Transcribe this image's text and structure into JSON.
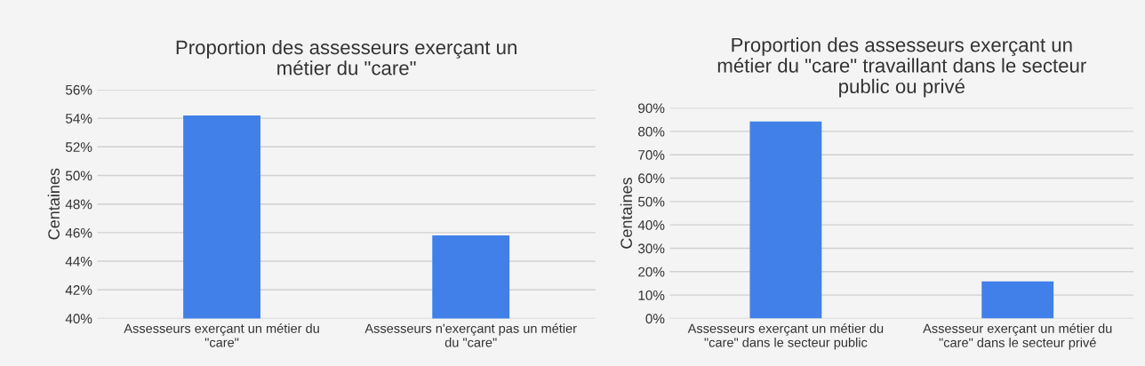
{
  "chart_data": [
    {
      "type": "bar",
      "title": "Proportion des assesseurs exerçant un\nmétier du \"care\"",
      "ylabel": "Centaines",
      "categories": [
        "Assesseurs exerçant un métier du\n\"care\"",
        "Assesseurs n'exerçant pas un métier\ndu \"care\""
      ],
      "values": [
        54.2,
        45.8
      ],
      "color": "#4180e8",
      "ylim": [
        40,
        56
      ],
      "yticks": [
        {
          "value": 40,
          "label": "40%"
        },
        {
          "value": 42,
          "label": "42%"
        },
        {
          "value": 44,
          "label": "44%"
        },
        {
          "value": 46,
          "label": "46%"
        },
        {
          "value": 48,
          "label": "48%"
        },
        {
          "value": 50,
          "label": "50%"
        },
        {
          "value": 52,
          "label": "52%"
        },
        {
          "value": 54,
          "label": "54%"
        },
        {
          "value": 56,
          "label": "56%"
        }
      ],
      "grid": "y"
    },
    {
      "type": "bar",
      "title": "Proportion des assesseurs exerçant un\nmétier du \"care\" travaillant dans le secteur\npublic ou privé",
      "ylabel": "Centaines",
      "categories": [
        "Assesseurs exerçant un métier du\n\"care\" dans le secteur public",
        "Assesseur exerçant un métier du\n\"care\" dans le secteur privé"
      ],
      "values": [
        84.2,
        15.8
      ],
      "color": "#4180e8",
      "ylim": [
        0,
        90
      ],
      "yticks": [
        {
          "value": 0,
          "label": "0%"
        },
        {
          "value": 10,
          "label": "10%"
        },
        {
          "value": 20,
          "label": "20%"
        },
        {
          "value": 30,
          "label": "30%"
        },
        {
          "value": 40,
          "label": "40%"
        },
        {
          "value": 50,
          "label": "50%"
        },
        {
          "value": 60,
          "label": "60%"
        },
        {
          "value": 70,
          "label": "70%"
        },
        {
          "value": 80,
          "label": "80%"
        },
        {
          "value": 90,
          "label": "90%"
        }
      ],
      "grid": "y"
    }
  ]
}
